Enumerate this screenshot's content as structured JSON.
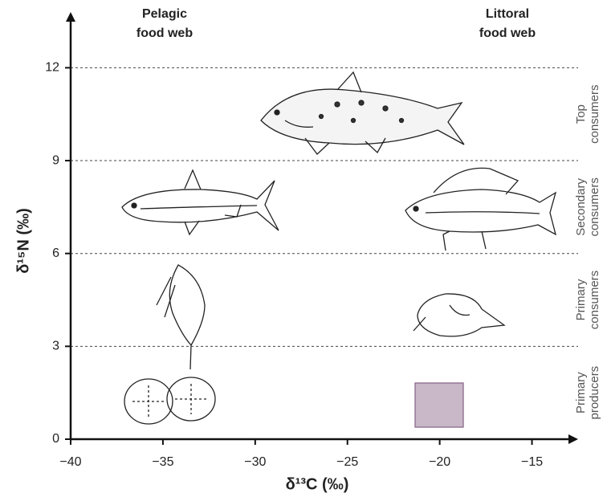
{
  "chart_data": {
    "type": "diagram",
    "xlabel": "δ¹³C (‰)",
    "ylabel": "δ¹⁵N (‰)",
    "xlim": [
      -40,
      -12.5
    ],
    "ylim": [
      0,
      13.8
    ],
    "xticks": [
      {
        "value": -40,
        "label": "−40"
      },
      {
        "value": -35,
        "label": "−35"
      },
      {
        "value": -30,
        "label": "−30"
      },
      {
        "value": -25,
        "label": "−25"
      },
      {
        "value": -20,
        "label": "−20"
      },
      {
        "value": -15,
        "label": "−15"
      }
    ],
    "yticks": [
      0,
      3,
      6,
      9,
      12
    ],
    "grid": true,
    "pelagic": [
      "Pelagic",
      "food web"
    ],
    "littoral": [
      "Littoral",
      "food web"
    ],
    "levels": [
      [
        "Primary",
        "producers"
      ],
      [
        "Primary",
        "consumers"
      ],
      [
        "Secondary",
        "consumers"
      ],
      [
        "Top",
        "consumers"
      ]
    ]
  }
}
